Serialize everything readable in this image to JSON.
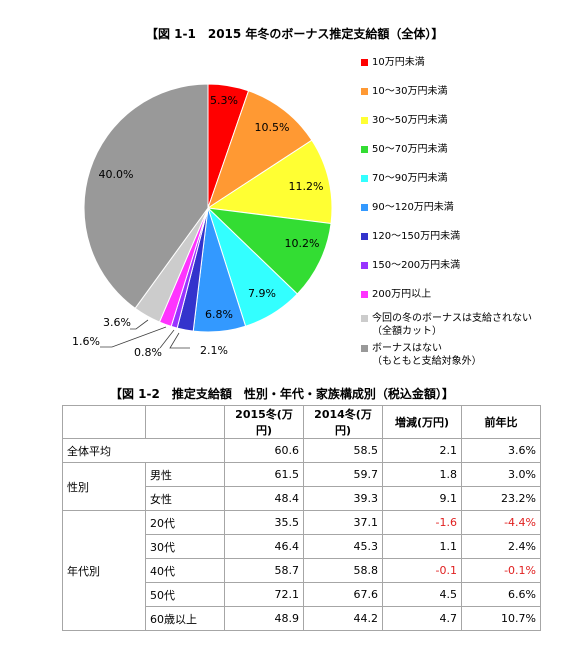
{
  "pie": {
    "title": "【図 1-1　2015 年冬のボーナス推定支給額（全体）】"
  },
  "chart_data": [
    {
      "type": "pie",
      "title": "【図 1-1　2015 年冬のボーナス推定支給額（全体）】",
      "categories": [
        "10万円未満",
        "10〜30万円未満",
        "30〜50万円未満",
        "50〜70万円未満",
        "70〜90万円未満",
        "90〜120万円未満",
        "120〜150万円未満",
        "150〜200万円未満",
        "200万円以上",
        "今回の冬のボーナスは支給されない（全額カット）",
        "ボーナスはない（もともと支給対象外）"
      ],
      "legend_labels": [
        [
          "10万円未満"
        ],
        [
          "10〜30万円未満"
        ],
        [
          "30〜50万円未満"
        ],
        [
          "50〜70万円未満"
        ],
        [
          "70〜90万円未満"
        ],
        [
          "90〜120万円未満"
        ],
        [
          "120〜150万円未満"
        ],
        [
          "150〜200万円未満"
        ],
        [
          "200万円以上"
        ],
        [
          "今回の冬のボーナスは支給されない",
          "（全額カット）"
        ],
        [
          "ボーナスはない",
          "（もともと支給対象外）"
        ]
      ],
      "values": [
        5.3,
        10.5,
        11.2,
        10.2,
        7.9,
        6.8,
        2.1,
        0.8,
        1.6,
        3.6,
        40.0
      ],
      "value_labels": [
        "5.3%",
        "10.5%",
        "11.2%",
        "10.2%",
        "7.9%",
        "6.8%",
        "2.1%",
        "0.8%",
        "1.6%",
        "3.6%",
        "40.0%"
      ],
      "colors": [
        "#ff0000",
        "#ff9933",
        "#ffff33",
        "#33dd33",
        "#33ffff",
        "#3399ff",
        "#3333cc",
        "#9933ff",
        "#ff33ff",
        "#cccccc",
        "#999999"
      ],
      "legend_placement": "right"
    },
    {
      "type": "table",
      "title": "【図 1-2　推定支給額　性別・年代・家族構成別（税込金額）】",
      "columns": [
        "2015冬(万円)",
        "2014冬(万円)",
        "増減(万円)",
        "前年比"
      ],
      "rows": [
        {
          "group": "全体平均",
          "sub": "",
          "values": [
            "60.6",
            "58.5",
            "2.1",
            "3.6%"
          ]
        },
        {
          "group": "性別",
          "sub": "男性",
          "values": [
            "61.5",
            "59.7",
            "1.8",
            "3.0%"
          ]
        },
        {
          "group": "",
          "sub": "女性",
          "values": [
            "48.4",
            "39.3",
            "9.1",
            "23.2%"
          ]
        },
        {
          "group": "年代別",
          "sub": "20代",
          "values": [
            "35.5",
            "37.1",
            "-1.6",
            "-4.4%"
          ]
        },
        {
          "group": "",
          "sub": "30代",
          "values": [
            "46.4",
            "45.3",
            "1.1",
            "2.4%"
          ]
        },
        {
          "group": "",
          "sub": "40代",
          "values": [
            "58.7",
            "58.8",
            "-0.1",
            "-0.1%"
          ]
        },
        {
          "group": "",
          "sub": "50代",
          "values": [
            "72.1",
            "67.6",
            "4.5",
            "6.6%"
          ]
        },
        {
          "group": "",
          "sub": "60歳以上",
          "values": [
            "48.9",
            "44.2",
            "4.7",
            "10.7%"
          ]
        }
      ]
    }
  ],
  "table": {
    "title": "【図 1-2　推定支給額　性別・年代・家族構成別（税込金額）】",
    "negative_color": "#e02020"
  }
}
